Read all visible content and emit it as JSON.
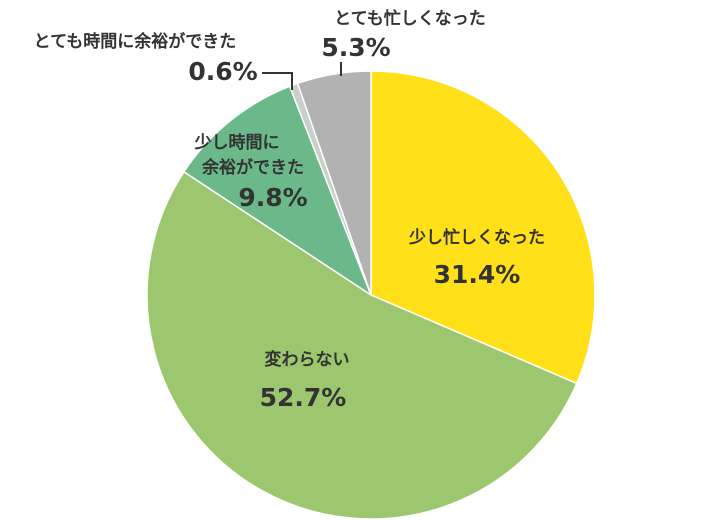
{
  "chart_data": {
    "type": "pie",
    "title": "",
    "start_angle_deg": 0,
    "direction": "clockwise",
    "slices": [
      {
        "label": "少し忙しくなった",
        "value": 31.4,
        "value_label": "31.4%",
        "color": "#FFE019"
      },
      {
        "label": "変わらない",
        "value": 52.7,
        "value_label": "52.7%",
        "color": "#9DC76E"
      },
      {
        "label": "少し時間に余裕ができた",
        "label_lines": [
          "少し時間に",
          "余裕ができた"
        ],
        "value": 9.8,
        "value_label": "9.8%",
        "color": "#6BB98B"
      },
      {
        "label": "とても時間に余裕ができた",
        "value": 0.6,
        "value_label": "0.6%",
        "color": "#C9CFCB"
      },
      {
        "label": "とても忙しくなった",
        "value": 5.3,
        "value_label": "5.3%",
        "color": "#B2B2B2"
      }
    ]
  }
}
